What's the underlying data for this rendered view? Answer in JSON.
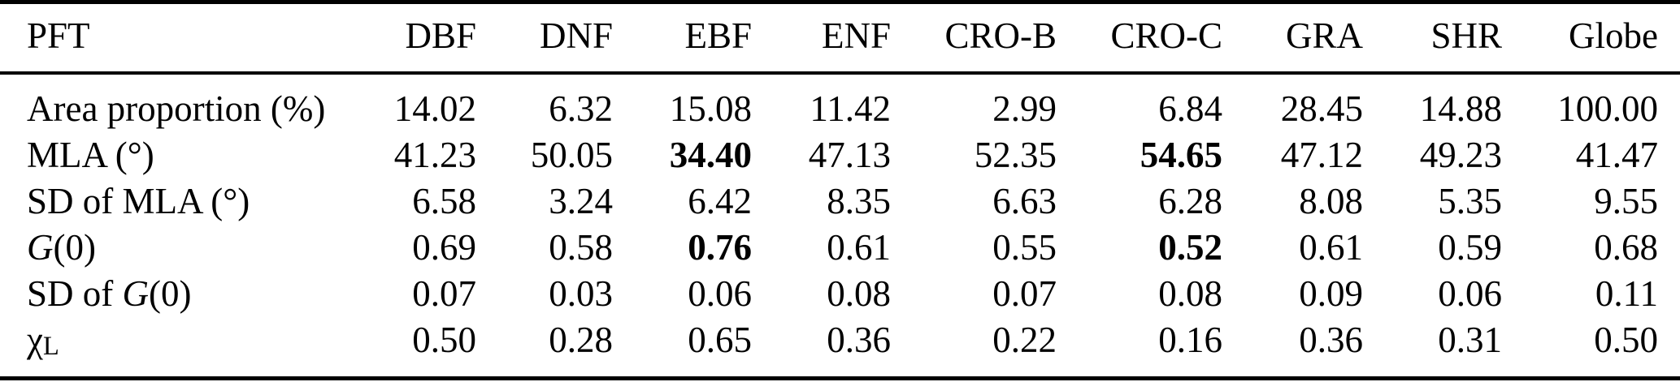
{
  "colors": {
    "text": "#000000",
    "background": "#ffffff",
    "rule": "#000000"
  },
  "table": {
    "columns": [
      "PFT",
      "DBF",
      "DNF",
      "EBF",
      "ENF",
      "CRO-B",
      "CRO-C",
      "GRA",
      "SHR",
      "Globe"
    ],
    "rows": [
      {
        "label": [
          {
            "t": "Area proportion (%)",
            "s": "n"
          }
        ],
        "label_text": "Area proportion (%)",
        "values": [
          "14.02",
          "6.32",
          "15.08",
          "11.42",
          "2.99",
          "6.84",
          "28.45",
          "14.88",
          "100.00"
        ],
        "bold": []
      },
      {
        "label": [
          {
            "t": "MLA (°)",
            "s": "n"
          }
        ],
        "label_text": "MLA (°)",
        "values": [
          "41.23",
          "50.05",
          "34.40",
          "47.13",
          "52.35",
          "54.65",
          "47.12",
          "49.23",
          "41.47"
        ],
        "bold": [
          2,
          5
        ]
      },
      {
        "label": [
          {
            "t": "SD of MLA (°)",
            "s": "n"
          }
        ],
        "label_text": "SD of MLA (°)",
        "values": [
          "6.58",
          "3.24",
          "6.42",
          "8.35",
          "6.63",
          "6.28",
          "8.08",
          "5.35",
          "9.55"
        ],
        "bold": []
      },
      {
        "label": [
          {
            "t": "G",
            "s": "i"
          },
          {
            "t": "(0)",
            "s": "n"
          }
        ],
        "label_text": "G(0)",
        "values": [
          "0.69",
          "0.58",
          "0.76",
          "0.61",
          "0.55",
          "0.52",
          "0.61",
          "0.59",
          "0.68"
        ],
        "bold": [
          2,
          5
        ]
      },
      {
        "label": [
          {
            "t": "SD of ",
            "s": "n"
          },
          {
            "t": "G",
            "s": "i"
          },
          {
            "t": "(0)",
            "s": "n"
          }
        ],
        "label_text": "SD of G(0)",
        "values": [
          "0.07",
          "0.03",
          "0.06",
          "0.08",
          "0.07",
          "0.08",
          "0.09",
          "0.06",
          "0.11"
        ],
        "bold": []
      },
      {
        "label": [
          {
            "t": "χ",
            "s": "n"
          },
          {
            "t": "L",
            "s": "sub"
          }
        ],
        "label_text": "χL",
        "values": [
          "0.50",
          "0.28",
          "0.65",
          "0.36",
          "0.22",
          "0.16",
          "0.36",
          "0.31",
          "0.50"
        ],
        "bold": []
      }
    ]
  },
  "chart_data": {
    "type": "table",
    "title": "",
    "categories": [
      "DBF",
      "DNF",
      "EBF",
      "ENF",
      "CRO-B",
      "CRO-C",
      "GRA",
      "SHR",
      "Globe"
    ],
    "series": [
      {
        "name": "Area proportion (%)",
        "values": [
          14.02,
          6.32,
          15.08,
          11.42,
          2.99,
          6.84,
          28.45,
          14.88,
          100.0
        ]
      },
      {
        "name": "MLA (°)",
        "values": [
          41.23,
          50.05,
          34.4,
          47.13,
          52.35,
          54.65,
          47.12,
          49.23,
          41.47
        ]
      },
      {
        "name": "SD of MLA (°)",
        "values": [
          6.58,
          3.24,
          6.42,
          8.35,
          6.63,
          6.28,
          8.08,
          5.35,
          9.55
        ]
      },
      {
        "name": "G(0)",
        "values": [
          0.69,
          0.58,
          0.76,
          0.61,
          0.55,
          0.52,
          0.61,
          0.59,
          0.68
        ]
      },
      {
        "name": "SD of G(0)",
        "values": [
          0.07,
          0.03,
          0.06,
          0.08,
          0.07,
          0.08,
          0.09,
          0.06,
          0.11
        ]
      },
      {
        "name": "χL",
        "values": [
          0.5,
          0.28,
          0.65,
          0.36,
          0.22,
          0.16,
          0.36,
          0.31,
          0.5
        ]
      }
    ]
  }
}
